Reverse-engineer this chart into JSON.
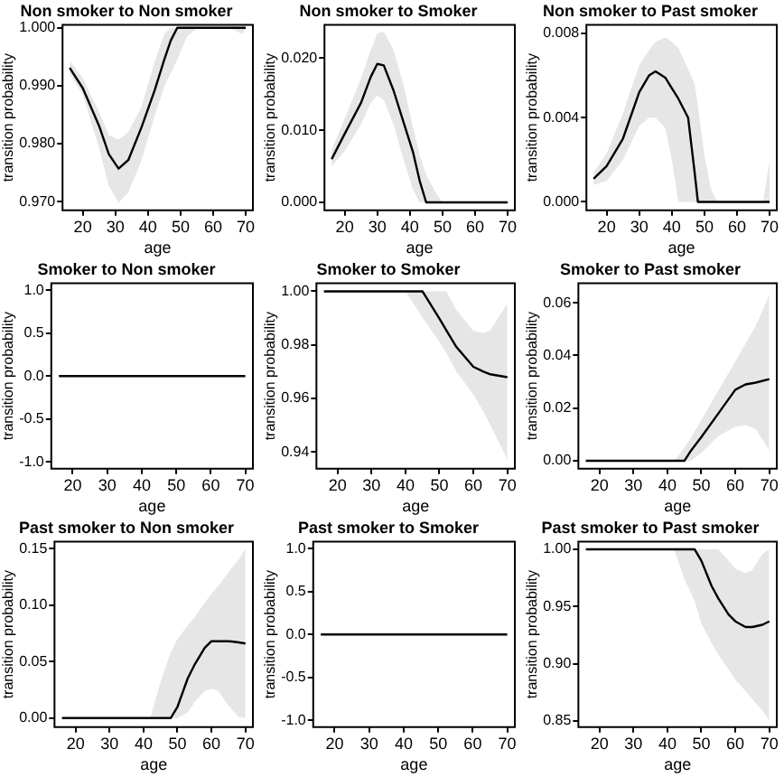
{
  "chart_data": [
    {
      "type": "line",
      "title": "Non smoker to Non smoker",
      "xlabel": "age",
      "ylabel": "transition probability",
      "x": [
        16,
        20,
        25,
        28,
        31,
        34,
        38,
        42,
        45,
        47,
        49,
        52,
        55,
        60,
        65,
        69,
        70
      ],
      "xlim": [
        13.8,
        72.2
      ],
      "xticks": [
        20,
        30,
        40,
        50,
        60,
        70
      ],
      "ylim": [
        0.9685,
        1.0005
      ],
      "yticks": [
        {
          "value": 0.97,
          "label": "0.970"
        },
        {
          "value": 0.98,
          "label": "0.980"
        },
        {
          "value": 0.99,
          "label": "0.990"
        },
        {
          "value": 1,
          "label": "1.000"
        }
      ],
      "series": [
        {
          "color": "#000000",
          "values": [
            0.9931,
            0.9896,
            0.9831,
            0.9782,
            0.9757,
            0.9772,
            0.9828,
            0.9891,
            0.9945,
            0.9978,
            1,
            1,
            1,
            1,
            1,
            1,
            1
          ],
          "upper": [
            0.9943,
            0.9913,
            0.9855,
            0.9815,
            0.9807,
            0.982,
            0.9864,
            0.994,
            0.9989,
            1,
            1,
            1,
            1,
            1,
            1,
            1,
            1
          ],
          "lower": [
            0.992,
            0.9885,
            0.9793,
            0.9727,
            0.9698,
            0.9716,
            0.9771,
            0.9847,
            0.9898,
            0.9922,
            0.9945,
            0.9985,
            1,
            1,
            1,
            0.9989,
            1
          ]
        }
      ]
    },
    {
      "type": "line",
      "title": "Non smoker to Smoker",
      "xlabel": "age",
      "ylabel": "transition probability",
      "x": [
        16,
        20,
        25,
        28,
        30,
        32,
        35,
        38,
        41,
        43,
        45,
        48,
        50,
        55,
        60,
        65,
        70
      ],
      "xlim": [
        13.8,
        72.2
      ],
      "xticks": [
        20,
        30,
        40,
        50,
        60,
        70
      ],
      "ylim": [
        -0.0011,
        0.0246
      ],
      "yticks": [
        {
          "value": 0,
          "label": "0.000"
        },
        {
          "value": 0.01,
          "label": "0.010"
        },
        {
          "value": 0.02,
          "label": "0.020"
        }
      ],
      "series": [
        {
          "color": "#000000",
          "values": [
            0.006,
            0.0095,
            0.0138,
            0.0174,
            0.0192,
            0.019,
            0.0155,
            0.0112,
            0.0069,
            0.003,
            0,
            0,
            0,
            0,
            0,
            0,
            0
          ],
          "upper": [
            0.0073,
            0.0116,
            0.0172,
            0.0211,
            0.0234,
            0.0237,
            0.0211,
            0.0164,
            0.0103,
            0.0065,
            0.0039,
            0.0013,
            0,
            0,
            0,
            0,
            0
          ],
          "lower": [
            0.005,
            0.0071,
            0.0108,
            0.0138,
            0.0148,
            0.0142,
            0.0108,
            0.006,
            0.0017,
            0,
            0,
            0,
            0,
            0,
            0,
            0,
            0
          ]
        }
      ]
    },
    {
      "type": "line",
      "title": "Non smoker to Past smoker",
      "xlabel": "age",
      "ylabel": "transition probability",
      "x": [
        16,
        20,
        25,
        30,
        33,
        35,
        38,
        40,
        42,
        45,
        47,
        48,
        50,
        52,
        54,
        60,
        65,
        68,
        70
      ],
      "xlim": [
        13.8,
        72.2
      ],
      "xticks": [
        20,
        30,
        40,
        50,
        60,
        70
      ],
      "ylim": [
        -0.0004,
        0.0084
      ],
      "yticks": [
        {
          "value": 0,
          "label": "0.000"
        },
        {
          "value": 0.004,
          "label": "0.004"
        },
        {
          "value": 0.008,
          "label": "0.008"
        }
      ],
      "series": [
        {
          "color": "#000000",
          "values": [
            0.0011,
            0.0017,
            0.003,
            0.0052,
            0.006,
            0.0062,
            0.0059,
            0.0054,
            0.0049,
            0.004,
            0.0014,
            0,
            0,
            0,
            0,
            0,
            0,
            0,
            0
          ],
          "upper": [
            0.0014,
            0.0023,
            0.0042,
            0.0065,
            0.0072,
            0.0076,
            0.0078,
            0.0076,
            0.0073,
            0.0063,
            0.0056,
            0.0046,
            0.0022,
            0.0006,
            0,
            0,
            0,
            0,
            0.002
          ],
          "lower": [
            0.0008,
            0.001,
            0.002,
            0.0036,
            0.004,
            0.004,
            0.0035,
            0.002,
            0,
            0,
            0,
            0,
            0,
            0,
            0,
            0,
            0,
            0,
            0
          ]
        }
      ]
    },
    {
      "type": "line",
      "title": "Smoker to Non smoker",
      "xlabel": "age",
      "ylabel": "transition probability",
      "x": [
        16,
        70
      ],
      "xlim": [
        13.8,
        72.2
      ],
      "xticks": [
        20,
        30,
        40,
        50,
        60,
        70
      ],
      "ylim": [
        -1.08,
        1.08
      ],
      "yticks": [
        {
          "value": -1,
          "label": "-1.0"
        },
        {
          "value": -0.5,
          "label": "-0.5"
        },
        {
          "value": 0,
          "label": "0.0"
        },
        {
          "value": 0.5,
          "label": "0.5"
        },
        {
          "value": 1,
          "label": "1.0"
        }
      ],
      "series": [
        {
          "color": "#000000",
          "values": [
            0,
            0
          ]
        }
      ]
    },
    {
      "type": "line",
      "title": "Smoker to Smoker",
      "xlabel": "age",
      "ylabel": "transition probability",
      "x": [
        16,
        40,
        45,
        50,
        52,
        55,
        60,
        63,
        65,
        70
      ],
      "xlim": [
        13.8,
        72.2
      ],
      "xticks": [
        20,
        30,
        40,
        50,
        60,
        70
      ],
      "ylim": [
        0.9337,
        1.003
      ],
      "yticks": [
        {
          "value": 0.94,
          "label": "0.94"
        },
        {
          "value": 0.96,
          "label": "0.96"
        },
        {
          "value": 0.98,
          "label": "0.98"
        },
        {
          "value": 1,
          "label": "1.00"
        }
      ],
      "series": [
        {
          "color": "#000000",
          "values": [
            1,
            1,
            1,
            0.9898,
            0.9855,
            0.9792,
            0.9718,
            0.97,
            0.969,
            0.9679
          ],
          "upper": [
            1,
            1,
            1,
            1,
            1,
            0.993,
            0.9852,
            0.9845,
            0.9855,
            0.9954
          ],
          "lower": [
            1,
            1,
            0.9903,
            0.9811,
            0.977,
            0.97,
            0.9614,
            0.955,
            0.9499,
            0.9372
          ]
        }
      ]
    },
    {
      "type": "line",
      "title": "Smoker to Past smoker",
      "xlabel": "age",
      "ylabel": "transition probability",
      "x": [
        16,
        42,
        45,
        47,
        50,
        55,
        60,
        63,
        66,
        70
      ],
      "xlim": [
        13.8,
        72.2
      ],
      "xticks": [
        20,
        30,
        40,
        50,
        60,
        70
      ],
      "ylim": [
        -0.003,
        0.0674
      ],
      "yticks": [
        {
          "value": 0,
          "label": "0.00"
        },
        {
          "value": 0.02,
          "label": "0.02"
        },
        {
          "value": 0.04,
          "label": "0.04"
        },
        {
          "value": 0.06,
          "label": "0.06"
        }
      ],
      "series": [
        {
          "color": "#000000",
          "values": [
            0,
            0,
            0,
            0.004,
            0.009,
            0.018,
            0.027,
            0.029,
            0.0297,
            0.031
          ],
          "upper": [
            0,
            0,
            0.005,
            0.009,
            0.0155,
            0.0267,
            0.0378,
            0.0445,
            0.0512,
            0.063
          ],
          "lower": [
            0,
            0,
            0,
            0,
            0.003,
            0.0094,
            0.013,
            0.0136,
            0.012,
            0.004
          ]
        }
      ]
    },
    {
      "type": "line",
      "title": "Past smoker to Non smoker",
      "xlabel": "age",
      "ylabel": "transition probability",
      "x": [
        16,
        42,
        45,
        48,
        50,
        53,
        55,
        58,
        60,
        62,
        65,
        68,
        70
      ],
      "xlim": [
        13.8,
        72.2
      ],
      "xticks": [
        20,
        30,
        40,
        50,
        60,
        70
      ],
      "ylim": [
        -0.008,
        0.156
      ],
      "yticks": [
        {
          "value": 0,
          "label": "0.00"
        },
        {
          "value": 0.05,
          "label": "0.05"
        },
        {
          "value": 0.1,
          "label": "0.10"
        },
        {
          "value": 0.15,
          "label": "0.15"
        }
      ],
      "series": [
        {
          "color": "#000000",
          "values": [
            0,
            0,
            0,
            0,
            0.01,
            0.035,
            0.047,
            0.062,
            0.068,
            0.068,
            0.068,
            0.067,
            0.066
          ],
          "upper": [
            0,
            0,
            0.032,
            0.058,
            0.07,
            0.082,
            0.089,
            0.102,
            0.11,
            0.117,
            0.129,
            0.14,
            0.15
          ],
          "lower": [
            0,
            0,
            0,
            0,
            0,
            0.005,
            0.014,
            0.024,
            0.026,
            0.024,
            0.011,
            0.001,
            0
          ]
        }
      ]
    },
    {
      "type": "line",
      "title": "Past smoker to Smoker",
      "xlabel": "age",
      "ylabel": "transition probability",
      "x": [
        16,
        70
      ],
      "xlim": [
        13.8,
        72.2
      ],
      "xticks": [
        20,
        30,
        40,
        50,
        60,
        70
      ],
      "ylim": [
        -1.08,
        1.08
      ],
      "yticks": [
        {
          "value": -1,
          "label": "-1.0"
        },
        {
          "value": -0.5,
          "label": "-0.5"
        },
        {
          "value": 0,
          "label": "0.0"
        },
        {
          "value": 0.5,
          "label": "0.5"
        },
        {
          "value": 1,
          "label": "1.0"
        }
      ],
      "series": [
        {
          "color": "#000000",
          "values": [
            0,
            0
          ]
        }
      ]
    },
    {
      "type": "line",
      "title": "Past smoker to Past smoker",
      "xlabel": "age",
      "ylabel": "transition probability",
      "x": [
        16,
        42,
        45,
        48,
        50,
        53,
        55,
        58,
        60,
        63,
        65,
        68,
        70
      ],
      "xlim": [
        13.8,
        72.2
      ],
      "xticks": [
        20,
        30,
        40,
        50,
        60,
        70
      ],
      "ylim": [
        0.8445,
        1.0066
      ],
      "yticks": [
        {
          "value": 0.85,
          "label": "0.85"
        },
        {
          "value": 0.9,
          "label": "0.90"
        },
        {
          "value": 0.95,
          "label": "0.95"
        },
        {
          "value": 1,
          "label": "1.00"
        }
      ],
      "series": [
        {
          "color": "#000000",
          "values": [
            1,
            1,
            1,
            1,
            0.99,
            0.968,
            0.957,
            0.943,
            0.937,
            0.932,
            0.932,
            0.934,
            0.937
          ],
          "upper": [
            1,
            1,
            1,
            1,
            1,
            1,
            1,
            0.99,
            0.983,
            0.979,
            0.982,
            0.996,
            1
          ],
          "lower": [
            1,
            1,
            0.974,
            0.955,
            0.935,
            0.918,
            0.908,
            0.895,
            0.886,
            0.876,
            0.869,
            0.859,
            0.85
          ]
        }
      ]
    }
  ]
}
